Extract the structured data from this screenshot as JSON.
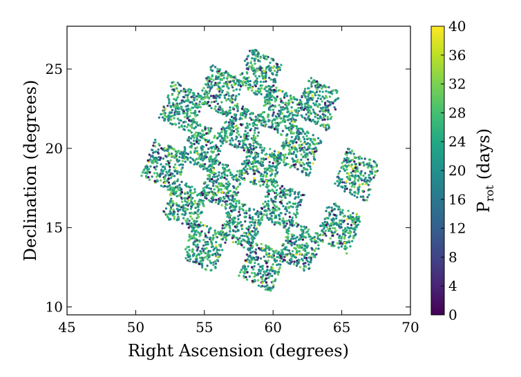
{
  "chart_data": {
    "type": "scatter",
    "xlabel": "Right Ascension (degrees)",
    "ylabel": "Declination (degrees)",
    "xlim": [
      45,
      70
    ],
    "ylim": [
      9.5,
      27.7
    ],
    "xticks": [
      "45",
      "50",
      "55",
      "60",
      "65",
      "70"
    ],
    "yticks": [
      "10",
      "15",
      "20",
      "25"
    ],
    "grid": false,
    "colorbar": {
      "label_main": "P",
      "label_sub": "rot",
      "label_unit": "(days)",
      "range": [
        0,
        40
      ],
      "ticks": [
        "0",
        "4",
        "8",
        "12",
        "16",
        "20",
        "24",
        "28",
        "32",
        "36",
        "40"
      ],
      "colormap": "viridis"
    },
    "fields": [
      {
        "ra": 53.4,
        "dec": 22.6
      },
      {
        "ra": 56.2,
        "dec": 23.6
      },
      {
        "ra": 59.0,
        "dec": 24.7
      },
      {
        "ra": 63.3,
        "dec": 22.8
      },
      {
        "ra": 54.9,
        "dec": 20.1
      },
      {
        "ra": 57.7,
        "dec": 21.3
      },
      {
        "ra": 60.5,
        "dec": 22.3
      },
      {
        "ra": 52.1,
        "dec": 18.9
      },
      {
        "ra": 56.3,
        "dec": 17.7
      },
      {
        "ra": 59.1,
        "dec": 18.9
      },
      {
        "ra": 61.9,
        "dec": 19.9
      },
      {
        "ra": 66.1,
        "dec": 18.3
      },
      {
        "ra": 53.6,
        "dec": 16.4
      },
      {
        "ra": 57.7,
        "dec": 15.2
      },
      {
        "ra": 60.6,
        "dec": 16.4
      },
      {
        "ra": 55.0,
        "dec": 13.8
      },
      {
        "ra": 59.2,
        "dec": 12.6
      },
      {
        "ra": 62.0,
        "dec": 13.8
      },
      {
        "ra": 64.8,
        "dec": 15.0
      }
    ],
    "field_size_deg": 2.6,
    "points_per_field": 230
  }
}
